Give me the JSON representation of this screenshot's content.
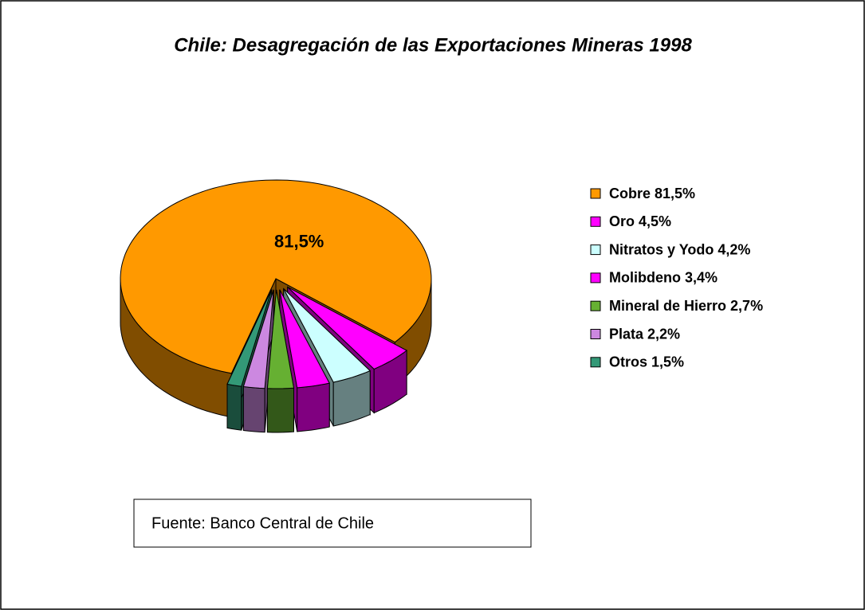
{
  "chart_data": {
    "type": "pie3d",
    "title": "Chile: Desagregación de las Exportaciones Mineras 1998",
    "categories": [
      "Cobre 81,5%",
      "Oro 4,5%",
      "Nitratos y Yodo 4,2%",
      "Molibdeno 3,4%",
      "Mineral de Hierro 2,7%",
      "Plata 2,2%",
      "Otros 1,5%"
    ],
    "values": [
      81.5,
      4.5,
      4.2,
      3.4,
      2.7,
      2.2,
      1.5
    ],
    "value_labels": [
      "81,5%",
      null,
      null,
      null,
      null,
      null,
      null
    ],
    "colors": [
      "#FF9900",
      "#FF00FF",
      "#CCFFFF",
      "#FF00FF",
      "#66B032",
      "#CC88E0",
      "#339977"
    ],
    "legend": "right",
    "annotation": "Fuente: Banco Central de Chile"
  }
}
